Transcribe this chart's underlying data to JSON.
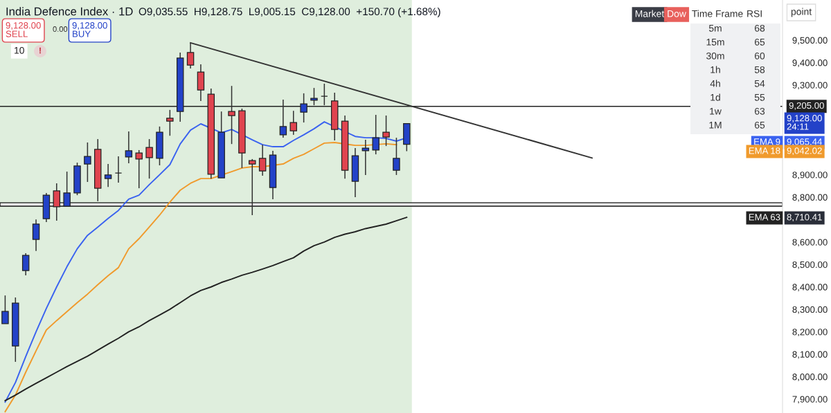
{
  "chart_data": {
    "type": "candlestick",
    "title": "India Defence Index · 1D",
    "subtitle": "O9,035.55  H9,128.75  L9,005.15  C9,128.00  +150.70 (+1.68%)",
    "categories": [
      null,
      null,
      null,
      null,
      null,
      null,
      null,
      null,
      null,
      null,
      null,
      null,
      null,
      null,
      null,
      null,
      null,
      null,
      null,
      null,
      null,
      null,
      null,
      null,
      null,
      null,
      null,
      null,
      null,
      null,
      null,
      null,
      null,
      null,
      null,
      null,
      null,
      null,
      null,
      null,
      null,
      null,
      null,
      null,
      null,
      null,
      null,
      null,
      null,
      null,
      null,
      null,
      null,
      null,
      null,
      null,
      null,
      null,
      null,
      null,
      null,
      null,
      null,
      null,
      null,
      null,
      null,
      null,
      null,
      null,
      null,
      null,
      null,
      null,
      null,
      null
    ],
    "ohlc": [
      [
        8236,
        8362,
        8236,
        8291
      ],
      [
        8137,
        8353,
        8066,
        8328
      ],
      [
        8473,
        8550,
        8452,
        8541
      ],
      [
        8612,
        8701,
        8560,
        8680
      ],
      [
        8704,
        8819,
        8689,
        8809
      ],
      [
        8828,
        8862,
        8695,
        8757
      ],
      [
        8760,
        8914,
        8760,
        8819
      ],
      [
        8819,
        8954,
        8809,
        8939
      ],
      [
        8948,
        9044,
        8868,
        8982
      ],
      [
        9013,
        9059,
        8782,
        8840
      ],
      [
        8883,
        8948,
        8846,
        8899
      ],
      [
        8908,
        8982,
        8865,
        8908
      ],
      [
        8979,
        9093,
        8951,
        9007
      ],
      [
        8997,
        9010,
        8840,
        8970
      ],
      [
        9022,
        9059,
        8883,
        8976
      ],
      [
        8973,
        9115,
        8942,
        9090
      ],
      [
        9152,
        9189,
        9074,
        9139
      ],
      [
        9182,
        9445,
        9136,
        9420
      ],
      [
        9445,
        9488,
        9374,
        9389
      ],
      [
        9358,
        9392,
        9229,
        9278
      ],
      [
        9259,
        9284,
        8883,
        8902
      ],
      [
        8886,
        9182,
        8886,
        9090
      ],
      [
        9182,
        9296,
        9037,
        9164
      ],
      [
        9185,
        9195,
        8930,
        8997
      ],
      [
        8963,
        8970,
        8720,
        8948
      ],
      [
        8973,
        9034,
        8896,
        8917
      ],
      [
        8843,
        9007,
        8791,
        8988
      ],
      [
        9078,
        9235,
        9065,
        9115
      ],
      [
        9133,
        9185,
        9078,
        9096
      ],
      [
        9179,
        9263,
        9133,
        9216
      ],
      [
        9232,
        9287,
        9210,
        9241
      ],
      [
        9250,
        9306,
        9210,
        9250
      ],
      [
        9229,
        9266,
        9053,
        9102
      ],
      [
        9139,
        9164,
        8883,
        8920
      ],
      [
        8871,
        9019,
        8800,
        8985
      ],
      [
        9007,
        9056,
        8899,
        9019
      ],
      [
        9010,
        9167,
        8991,
        9065
      ],
      [
        9090,
        9164,
        9028,
        9068
      ],
      [
        8920,
        9065,
        8899,
        8973
      ],
      [
        9035.55,
        9128.75,
        9005.15,
        9128.0
      ],
      null,
      null,
      null,
      null,
      null,
      null,
      null,
      null,
      null,
      null,
      null,
      null,
      null,
      null,
      null,
      null,
      null,
      null,
      null,
      null,
      null,
      null,
      null,
      null,
      null,
      null,
      null,
      null,
      null,
      null,
      null,
      null,
      null,
      null,
      null,
      null
    ],
    "colors": [
      "#2342c8",
      "#2342c8",
      "#2342c8",
      "#2342c8",
      "#2342c8",
      "#e0444f",
      "#2342c8",
      "#2342c8",
      "#2342c8",
      "#e0444f",
      "#2342c8",
      "#222222",
      "#2342c8",
      "#e0444f",
      "#e0444f",
      "#2342c8",
      "#e0444f",
      "#2342c8",
      "#e0444f",
      "#e0444f",
      "#e0444f",
      "#2342c8",
      "#e0444f",
      "#e0444f",
      "#e0444f",
      "#e0444f",
      "#2342c8",
      "#2342c8",
      "#e0444f",
      "#2342c8",
      "#2342c8",
      "#222222",
      "#e0444f",
      "#e0444f",
      "#2342c8",
      "#2342c8",
      "#2342c8",
      "#e0444f",
      "#2342c8",
      "#2342c8",
      null,
      null,
      null,
      null,
      null,
      null,
      null,
      null,
      null,
      null,
      null,
      null,
      null,
      null,
      null,
      null,
      null,
      null,
      null,
      null,
      null,
      null,
      null,
      null,
      null,
      null,
      null,
      null,
      null,
      null,
      null,
      null,
      null,
      null,
      null,
      null
    ],
    "series": [
      {
        "name": "EMA 9",
        "type": "line",
        "color": "#3a62f0",
        "values": [
          7887,
          7974,
          8090,
          8200,
          8304,
          8400,
          8490,
          8570,
          8630,
          8667,
          8705,
          8741,
          8791,
          8809,
          8856,
          8900,
          8945,
          9037,
          9099,
          9127,
          null,
          9087,
          9102,
          null,
          9056,
          9034,
          9025,
          9025,
          9053,
          9078,
          9105,
          9136,
          null,
          null,
          9071,
          9065,
          9065,
          9062,
          9050,
          9065,
          null,
          null,
          null,
          null,
          null,
          null,
          null,
          null,
          null,
          null,
          null,
          null,
          null,
          null,
          null,
          null,
          null,
          null,
          null,
          null,
          null,
          null,
          null,
          null,
          null,
          null,
          null,
          null,
          null,
          null,
          null,
          null,
          null,
          null,
          null,
          null
        ]
      },
      {
        "name": "EMA 18",
        "type": "line",
        "color": "#f09a2c",
        "values": [
          7844,
          7918,
          8020,
          8115,
          8208,
          8250,
          8290,
          8330,
          8368,
          8410,
          8450,
          8486,
          8570,
          8615,
          8667,
          8720,
          8778,
          8831,
          8862,
          8883,
          8883,
          null,
          8914,
          8930,
          8936,
          8936,
          null,
          8948,
          8973,
          8991,
          9016,
          9041,
          9044,
          null,
          9031,
          9031,
          null,
          9038,
          9034,
          null,
          null,
          null,
          null,
          null,
          null,
          null,
          null,
          null,
          null,
          null,
          null,
          null,
          null,
          null,
          null,
          null,
          null,
          null,
          null,
          null,
          null,
          null,
          null,
          null,
          null,
          null,
          null,
          null,
          null,
          null,
          null,
          null,
          null,
          null,
          null,
          null
        ]
      },
      {
        "name": "EMA 63",
        "type": "line",
        "color": "#222222",
        "values": [
          7893,
          7918,
          7945,
          7970,
          7995,
          8020,
          8045,
          8068,
          8091,
          8118,
          8145,
          8171,
          8200,
          8222,
          8250,
          8275,
          8300,
          8330,
          8360,
          8384,
          8400,
          8420,
          8435,
          8452,
          8465,
          8480,
          8495,
          8513,
          8530,
          8560,
          8584,
          8600,
          8621,
          8635,
          8646,
          8660,
          8670,
          8680,
          8695,
          8710,
          null,
          null,
          null,
          null,
          null,
          null,
          null,
          null,
          null,
          null,
          null,
          null,
          null,
          null,
          null,
          null,
          null,
          null,
          null,
          null,
          null,
          null,
          null,
          null,
          null,
          null,
          null,
          null,
          null,
          null,
          null,
          null,
          null,
          null,
          null,
          null
        ]
      },
      {
        "type": "line",
        "color": "#333333",
        "values": [
          null,
          null,
          null,
          null,
          null,
          null,
          null,
          null,
          null,
          null,
          null,
          null,
          null,
          null,
          null,
          null,
          null,
          null,
          9488,
          null,
          null,
          null,
          null,
          null,
          null,
          null,
          null,
          null,
          null,
          null,
          null,
          null,
          null,
          null,
          null,
          null,
          null,
          null,
          null,
          null,
          null,
          null,
          null,
          null,
          null,
          null,
          null,
          null,
          null,
          null,
          null,
          null,
          null,
          null,
          null,
          null,
          null,
          8975,
          null,
          null,
          null,
          null,
          null,
          null,
          null,
          null,
          null,
          null,
          null,
          null,
          null,
          null,
          null,
          null,
          null,
          null
        ]
      }
    ],
    "ylim": [
      7838,
      9679
    ],
    "yticks": [
      {
        "value": 7900,
        "label": "7,900.00"
      },
      {
        "value": 8000,
        "label": "8,000.00"
      },
      {
        "value": 8100,
        "label": "8,100.00"
      },
      {
        "value": 8200,
        "label": "8,200.00"
      },
      {
        "value": 8300,
        "label": "8,300.00"
      },
      {
        "value": 8400,
        "label": "8,400.00"
      },
      {
        "value": 8500,
        "label": "8,500.00"
      },
      {
        "value": 8600,
        "label": "8,600.00"
      },
      {
        "value": 8800,
        "label": "8,800.00"
      },
      {
        "value": 8900,
        "label": "8,900.00"
      },
      {
        "value": 9300,
        "label": "9,300.00"
      },
      {
        "value": 9400,
        "label": "9,400.00"
      },
      {
        "value": 9500,
        "label": "9,500.00"
      }
    ],
    "tick_labels": "y",
    "grid": false,
    "legend": "right",
    "ref_lines": [
      {
        "axis": "y",
        "value": 9205,
        "label": "9,205.00",
        "color": "#222222"
      }
    ],
    "bands": [
      {
        "axis": "y",
        "from": 8760,
        "to": 8775,
        "color": "#ffffff"
      }
    ],
    "annotations": [
      "9,128.00\n24:11",
      "9,065.44",
      "9,042.02",
      "8,710.41",
      "9,128.00\nSELL",
      "0.00",
      "9,128.00\nBUY",
      "10",
      "!",
      "Market",
      "Dow",
      "Time Frame",
      "RSI",
      "point",
      "5m",
      "68",
      "15m",
      "65",
      "30m",
      "60",
      "1h",
      "58",
      "4h",
      "54",
      "1d",
      "55",
      "1w",
      "63",
      "1M",
      "65"
    ]
  }
}
